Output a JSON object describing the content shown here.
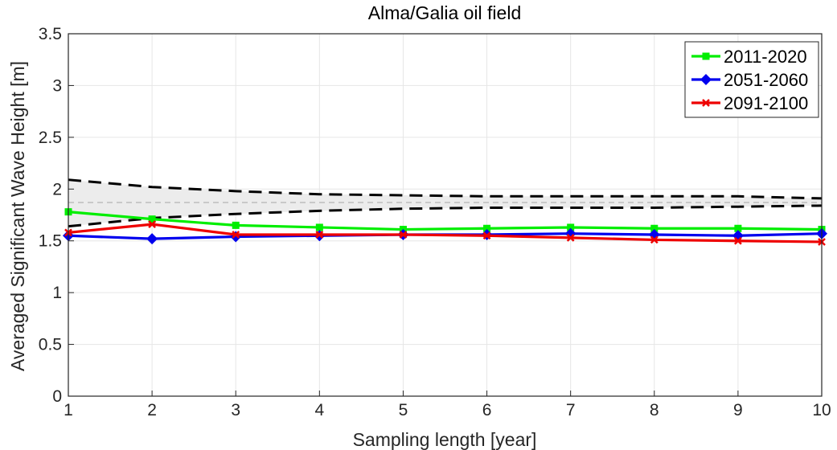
{
  "chart_data": {
    "type": "line",
    "title": "Alma/Galia oil field",
    "xlabel": "Sampling length [year]",
    "ylabel": "Averaged Significant Wave Height [m]",
    "x": [
      1,
      2,
      3,
      4,
      5,
      6,
      7,
      8,
      9,
      10
    ],
    "xlim": [
      1,
      10
    ],
    "ylim": [
      0,
      3.5
    ],
    "xticks": [
      "1",
      "2",
      "3",
      "4",
      "5",
      "6",
      "7",
      "8",
      "9",
      "10"
    ],
    "yticks": [
      "0",
      "0.5",
      "1",
      "1.5",
      "2",
      "2.5",
      "3",
      "3.5"
    ],
    "grid": true,
    "legend_position": "top-right",
    "series": [
      {
        "name": "2011-2020",
        "color": "#00ee00",
        "marker": "square",
        "values": [
          1.78,
          1.71,
          1.65,
          1.63,
          1.61,
          1.62,
          1.63,
          1.62,
          1.62,
          1.61
        ]
      },
      {
        "name": "2051-2060",
        "color": "#0000ee",
        "marker": "diamond",
        "values": [
          1.55,
          1.52,
          1.54,
          1.55,
          1.56,
          1.56,
          1.57,
          1.56,
          1.55,
          1.57
        ]
      },
      {
        "name": "2091-2100",
        "color": "#ee0000",
        "marker": "x",
        "values": [
          1.58,
          1.66,
          1.56,
          1.56,
          1.56,
          1.55,
          1.53,
          1.51,
          1.5,
          1.49
        ]
      }
    ],
    "band": {
      "upper": [
        2.09,
        2.02,
        1.98,
        1.95,
        1.94,
        1.93,
        1.93,
        1.93,
        1.93,
        1.91
      ],
      "lower": [
        1.64,
        1.72,
        1.76,
        1.79,
        1.81,
        1.82,
        1.82,
        1.82,
        1.83,
        1.84
      ],
      "center": 1.87,
      "line_color": "#000000",
      "fill_color": "#ececec",
      "center_color": "#b4b4b4"
    }
  }
}
